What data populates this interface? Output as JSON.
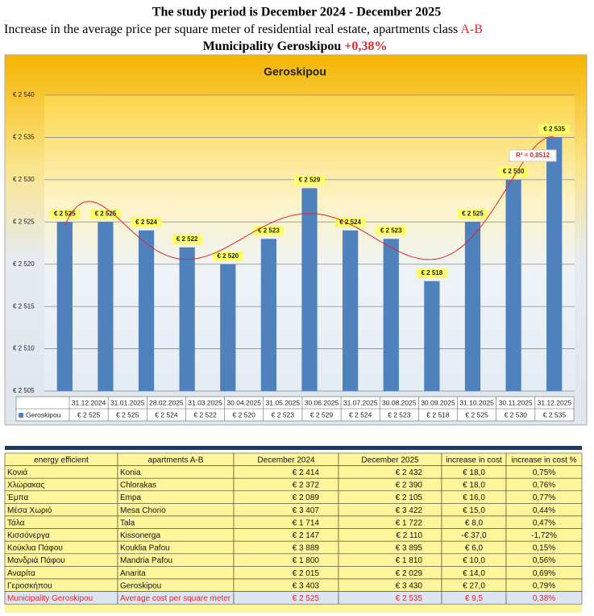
{
  "header": {
    "title": "The study period is December 2024 - December 2025",
    "subtitle": "Increase in the average price per square meter of residential real estate, apartments class",
    "subtitle_highlight": "A-B",
    "municipality": "Municipality Geroskipou",
    "municipality_highlight": "+0,38%"
  },
  "chart_data": {
    "type": "bar",
    "title": "Geroskipou",
    "categories": [
      "31.12.2024",
      "31.01.2025",
      "28.02.2025",
      "31.03.2025",
      "30.04.2025",
      "31.05.2025",
      "30.06.2025",
      "31.07.2025",
      "30.08.2025",
      "30.09.2025",
      "31.10.2025",
      "30.11.2025",
      "31.12.2025"
    ],
    "series": [
      {
        "name": "Geroskipou",
        "color": "#4f81bd",
        "values": [
          2525,
          2525,
          2524,
          2522,
          2520,
          2523,
          2529,
          2524,
          2523,
          2518,
          2525,
          2530,
          2535
        ],
        "value_labels": [
          "€ 2 525",
          "€ 2 525",
          "€ 2 524",
          "€ 2 522",
          "€ 2 520",
          "€ 2 523",
          "€ 2 529",
          "€ 2 524",
          "€ 2 523",
          "€ 2 518",
          "€ 2 525",
          "€ 2 530",
          "€ 2 535"
        ]
      }
    ],
    "ylim": [
      2505,
      2540
    ],
    "yticks": [
      {
        "value": 2505,
        "label": "€ 2 505"
      },
      {
        "value": 2510,
        "label": "€ 2 510"
      },
      {
        "value": 2515,
        "label": "€ 2 515"
      },
      {
        "value": 2520,
        "label": "€ 2 520"
      },
      {
        "value": 2525,
        "label": "€ 2 525"
      },
      {
        "value": 2530,
        "label": "€ 2 530"
      },
      {
        "value": 2535,
        "label": "€ 2 535"
      },
      {
        "value": 2540,
        "label": "€ 2 540"
      }
    ],
    "grid": true,
    "trendline_label": "R² = 0,8512",
    "trendline_color": "#e0262b"
  },
  "table": {
    "columns": [
      "energy efficient",
      "apartments A-B",
      "December 2024",
      "December 2025",
      "increase in cost",
      "increase in cost  %"
    ],
    "rows": [
      [
        "Κονιά",
        "Konia",
        "€ 2 414",
        "€ 2 432",
        "€ 18,0",
        "0,75%"
      ],
      [
        "Χλώρακας",
        "Chlorakas",
        "€ 2 372",
        "€ 2 390",
        "€ 18,0",
        "0,76%"
      ],
      [
        "Έμπα",
        "Empa",
        "€ 2 089",
        "€ 2 105",
        "€ 16,0",
        "0,77%"
      ],
      [
        "Μέσα Χωριό",
        "Mesa Chorio",
        "€ 3 407",
        "€ 3 422",
        "€ 15,0",
        "0,44%"
      ],
      [
        "Τάλα",
        "Tala",
        "€ 1 714",
        "€ 1 722",
        "€ 8,0",
        "0,47%"
      ],
      [
        "Κισσόνεργα",
        "Kissonerga",
        "€ 2 147",
        "€ 2 110",
        "-€ 37,0",
        "-1,72%"
      ],
      [
        "Κούκλια Πάφου",
        "Kouklia Pafou",
        "€ 3 889",
        "€ 3 895",
        "€ 6,0",
        "0,15%"
      ],
      [
        "Μανδριά Πάφου",
        "Mandria Pafou",
        "€ 1 800",
        "€ 1 810",
        "€ 10,0",
        "0,56%"
      ],
      [
        "Αναρίτα",
        "Anarita",
        "€ 2 015",
        "€ 2 029",
        "€ 14,0",
        "0,69%"
      ],
      [
        "Γεροσκήπου",
        "Geroskipou",
        "€ 3 403",
        "€ 3 430",
        "€ 27,0",
        "0,79%"
      ]
    ],
    "total": [
      "Municipality Geroskipou",
      "Average cost per square meter",
      "€ 2 525",
      "€ 2 535",
      "€ 9,5",
      "0,38%"
    ]
  }
}
